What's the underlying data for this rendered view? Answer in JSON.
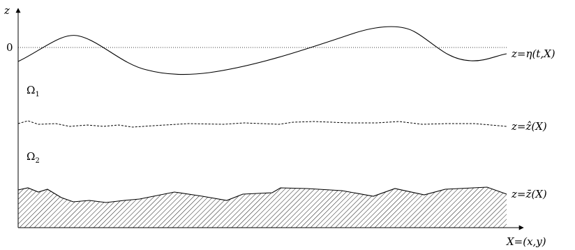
{
  "diagram": {
    "axes": {
      "vertical_label": "z",
      "horizontal_label": "X=(x,y)",
      "zero_tick": "0"
    },
    "regions": [
      {
        "base": "Ω",
        "sub": "1"
      },
      {
        "base": "Ω",
        "sub": "2"
      }
    ],
    "curves": {
      "surface_label": "z=η(t,X)",
      "interface_label": "z=ẑ(X)",
      "bottom_label": "z=z̄(X)"
    },
    "styles": {
      "surface": "solid",
      "interface": "dashed",
      "zero_level": "dotted",
      "bottom": "solid with hatched fill"
    }
  }
}
